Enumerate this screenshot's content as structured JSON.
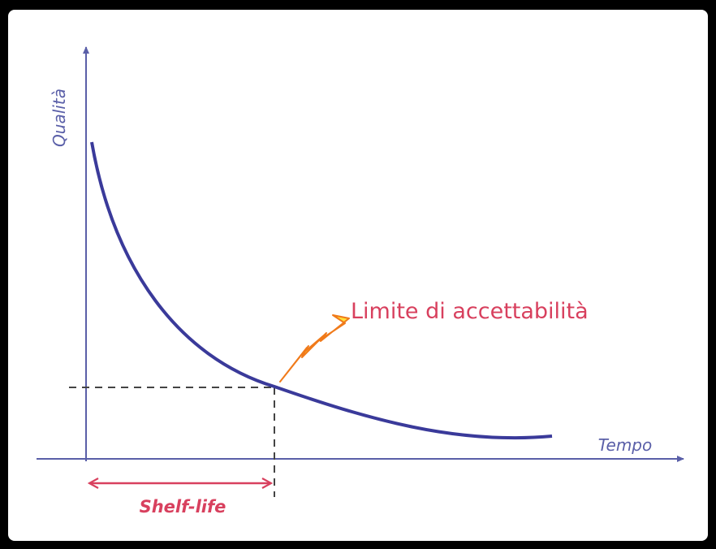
{
  "axes": {
    "y_label": "Qualità",
    "x_label": "Tempo"
  },
  "annotation": "Limite di accettabilità",
  "interval_label": "Shelf-life"
}
